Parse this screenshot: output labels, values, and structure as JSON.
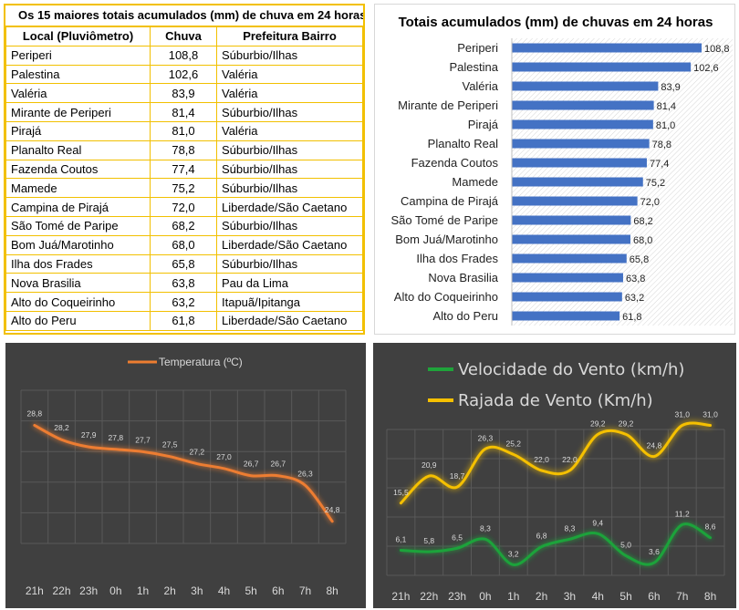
{
  "table": {
    "title": "Os 15 maiores totais acumulados (mm) de chuva em 24 horas",
    "headers": [
      "Local (Pluviômetro)",
      "Chuva",
      "Prefeitura Bairro"
    ],
    "rows": [
      [
        "Periperi",
        "108,8",
        "Súburbio/Ilhas"
      ],
      [
        "Palestina",
        "102,6",
        "Valéria"
      ],
      [
        "Valéria",
        "83,9",
        "Valéria"
      ],
      [
        "Mirante de Periperi",
        "81,4",
        "Súburbio/Ilhas"
      ],
      [
        "Pirajá",
        "81,0",
        "Valéria"
      ],
      [
        "Planalto Real",
        "78,8",
        "Súburbio/Ilhas"
      ],
      [
        "Fazenda Coutos",
        "77,4",
        "Súburbio/Ilhas"
      ],
      [
        "Mamede",
        "75,2",
        "Súburbio/Ilhas"
      ],
      [
        "Campina de Pirajá",
        "72,0",
        "Liberdade/São Caetano"
      ],
      [
        "São Tomé de Paripe",
        "68,2",
        "Súburbio/Ilhas"
      ],
      [
        "Bom Juá/Marotinho",
        "68,0",
        "Liberdade/São Caetano"
      ],
      [
        "Ilha dos Frades",
        "65,8",
        "Súburbio/Ilhas"
      ],
      [
        "Nova Brasilia",
        "63,8",
        "Pau da Lima"
      ],
      [
        "Alto do Coqueirinho",
        "63,2",
        "Itapuã/Ipitanga"
      ],
      [
        "Alto do Peru",
        "61,8",
        "Liberdade/São Caetano"
      ]
    ]
  },
  "colors": {
    "table_border": "#f2c000",
    "bar": "#4472c4",
    "temperature": "#ed7d31",
    "wind": "#1fa33a",
    "gust": "#f5c000",
    "dark_bg": "#404040"
  },
  "chart_data": [
    {
      "type": "bar",
      "orientation": "horizontal",
      "title": "Totais acumulados (mm) de chuvas em 24 horas",
      "categories": [
        "Periperi",
        "Palestina",
        "Valéria",
        "Mirante de Periperi",
        "Pirajá",
        "Planalto Real",
        "Fazenda Coutos",
        "Mamede",
        "Campina de Pirajá",
        "São Tomé de Paripe",
        "Bom Juá/Marotinho",
        "Ilha dos Frades",
        "Nova Brasilia",
        "Alto do Coqueirinho",
        "Alto do Peru"
      ],
      "values": [
        108.8,
        102.6,
        83.9,
        81.4,
        81.0,
        78.8,
        77.4,
        75.2,
        72.0,
        68.2,
        68.0,
        65.8,
        63.8,
        63.2,
        61.8
      ],
      "value_labels": [
        "108,8",
        "102,6",
        "83,9",
        "81,4",
        "81,0",
        "78,8",
        "77,4",
        "75,2",
        "72,0",
        "68,2",
        "68,0",
        "65,8",
        "63,8",
        "63,2",
        "61,8"
      ],
      "xlim": [
        0,
        110
      ],
      "grid": false
    },
    {
      "type": "line",
      "categories": [
        "21h",
        "22h",
        "23h",
        "0h",
        "1h",
        "2h",
        "3h",
        "4h",
        "5h",
        "6h",
        "7h",
        "8h"
      ],
      "series": [
        {
          "name": "Temperatura (ºC)",
          "values": [
            28.8,
            28.2,
            27.9,
            27.8,
            27.7,
            27.5,
            27.2,
            27.0,
            26.7,
            26.7,
            26.3,
            24.8
          ],
          "labels": [
            "28,8",
            "28,2",
            "27,9",
            "27,8",
            "27,7",
            "27,5",
            "27,2",
            "27,0",
            "26,7",
            "26,7",
            "26,3",
            "24,8"
          ]
        }
      ],
      "ylim": [
        23.5,
        29.5
      ],
      "grid": true,
      "legend": "top"
    },
    {
      "type": "line",
      "categories": [
        "21h",
        "22h",
        "23h",
        "0h",
        "1h",
        "2h",
        "3h",
        "4h",
        "5h",
        "6h",
        "7h",
        "8h"
      ],
      "series": [
        {
          "name": "Velocidade do Vento (km/h)",
          "values": [
            6.1,
            5.8,
            6.5,
            8.3,
            3.2,
            6.8,
            8.3,
            9.4,
            5.0,
            3.6,
            11.2,
            8.6
          ],
          "labels": [
            "6,1",
            "5,8",
            "6,5",
            "8,3",
            "3,2",
            "6,8",
            "8,3",
            "9,4",
            "5,0",
            "3,6",
            "11,2",
            "8,6"
          ]
        },
        {
          "name": "Rajada de Vento (Km/h)",
          "values": [
            15.5,
            20.9,
            18.7,
            26.3,
            25.2,
            22.0,
            22.0,
            29.2,
            29.2,
            24.8,
            31.0,
            31.0
          ],
          "labels": [
            "15,5",
            "20,9",
            "18,7",
            "26,3",
            "25,2",
            "22,0",
            "22,0",
            "29,2",
            "29,2",
            "24,8",
            "31,0",
            "31,0"
          ]
        }
      ],
      "ylim": [
        0,
        34
      ],
      "grid": true,
      "legend": "top"
    }
  ]
}
